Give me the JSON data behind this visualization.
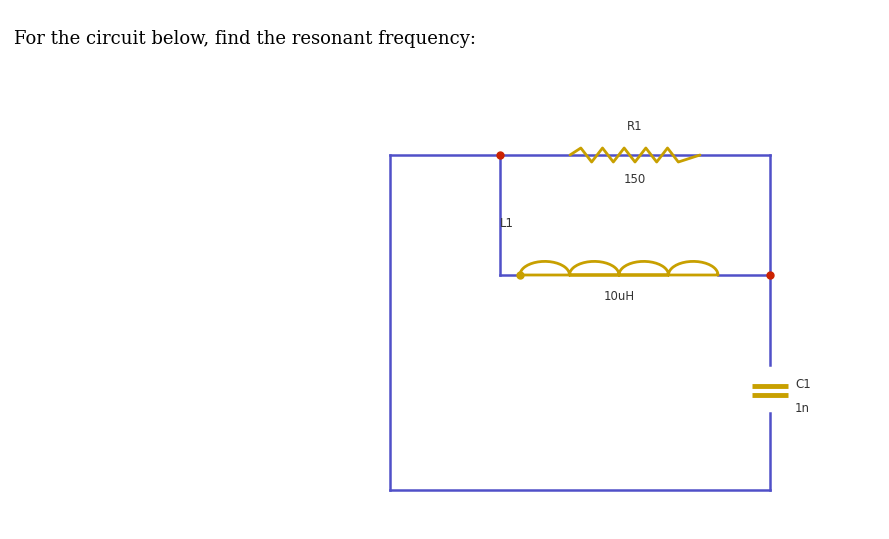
{
  "title": "For the circuit below, find the resonant frequency:",
  "wire_color": "#5050c8",
  "wire_linewidth": 1.8,
  "component_color": "#c8a000",
  "dot_color_red": "#cc2200",
  "dot_color_gold": "#c8a000",
  "background_color": "#ffffff",
  "R1_label": "R1",
  "R1_value": "150",
  "L1_label": "L1",
  "L1_value": "10uH",
  "C1_label": "C1",
  "C1_value": "1n",
  "label_fontsize": 8.5,
  "value_fontsize": 8.5,
  "title_fontsize": 13
}
